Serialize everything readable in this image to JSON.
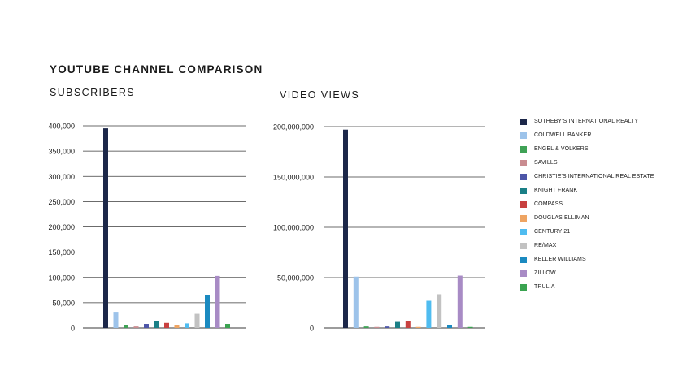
{
  "title": "YOUTUBE CHANNEL COMPARISON",
  "chart_data": [
    {
      "type": "bar",
      "title": "SUBSCRIBERS",
      "categories": [
        "SOTHEBY'S INTERNATIONAL REALTY",
        "COLDWELL BANKER",
        "ENGEL & VOLKERS",
        "SAVILLS",
        "CHRISTIE'S INTERNATIONAL REAL ESTATE",
        "KNIGHT FRANK",
        "COMPASS",
        "DOUGLAS ELLIMAN",
        "CENTURY 21",
        "RE/MAX",
        "KELLER WILLIAMS",
        "ZILLOW",
        "TRULIA"
      ],
      "values": [
        395000,
        32000,
        6000,
        3000,
        8000,
        13000,
        10000,
        5000,
        9000,
        28000,
        65000,
        103000,
        8000
      ],
      "ylim": [
        0,
        400000
      ],
      "yticks": [
        0,
        50000,
        100000,
        150000,
        200000,
        250000,
        300000,
        350000,
        400000
      ],
      "ytick_labels": [
        "0",
        "50,000",
        "100,000",
        "150,000",
        "200,000",
        "250,000",
        "300,000",
        "350,000",
        "400,000"
      ],
      "grid": true
    },
    {
      "type": "bar",
      "title": "VIDEO VIEWS",
      "categories": [
        "SOTHEBY'S INTERNATIONAL REALTY",
        "COLDWELL BANKER",
        "ENGEL & VOLKERS",
        "SAVILLS",
        "CHRISTIE'S INTERNATIONAL REAL ESTATE",
        "KNIGHT FRANK",
        "COMPASS",
        "DOUGLAS ELLIMAN",
        "CENTURY 21",
        "RE/MAX",
        "KELLER WILLIAMS",
        "ZILLOW",
        "TRULIA"
      ],
      "values": [
        197000000,
        51000000,
        1500000,
        1000000,
        1500000,
        6000000,
        6500000,
        1000000,
        27000000,
        33500000,
        2500000,
        52000000,
        1000000
      ],
      "ylim": [
        0,
        200000000
      ],
      "yticks": [
        0,
        50000000,
        100000000,
        150000000,
        200000000
      ],
      "ytick_labels": [
        "0",
        "50,000,000",
        "100,000,000",
        "150,000,000",
        "200,000,000"
      ],
      "grid": true
    }
  ],
  "legend": [
    {
      "label": "SOTHEBY'S INTERNATIONAL REALTY",
      "color": "#1c2749"
    },
    {
      "label": "COLDWELL BANKER",
      "color": "#9dc3ea"
    },
    {
      "label": "ENGEL & VOLKERS",
      "color": "#3fa256"
    },
    {
      "label": "SAVILLS",
      "color": "#c98c90"
    },
    {
      "label": "CHRISTIE'S INTERNATIONAL REAL ESTATE",
      "color": "#4d56a8"
    },
    {
      "label": "KNIGHT FRANK",
      "color": "#1a7f86"
    },
    {
      "label": "COMPASS",
      "color": "#c8403f"
    },
    {
      "label": "DOUGLAS ELLIMAN",
      "color": "#eea462"
    },
    {
      "label": "CENTURY 21",
      "color": "#4fbcf0"
    },
    {
      "label": "RE/MAX",
      "color": "#c2c2c2"
    },
    {
      "label": "KELLER WILLIAMS",
      "color": "#1b8ac0"
    },
    {
      "label": "ZILLOW",
      "color": "#a88bc5"
    },
    {
      "label": "TRULIA",
      "color": "#3aa350"
    }
  ]
}
